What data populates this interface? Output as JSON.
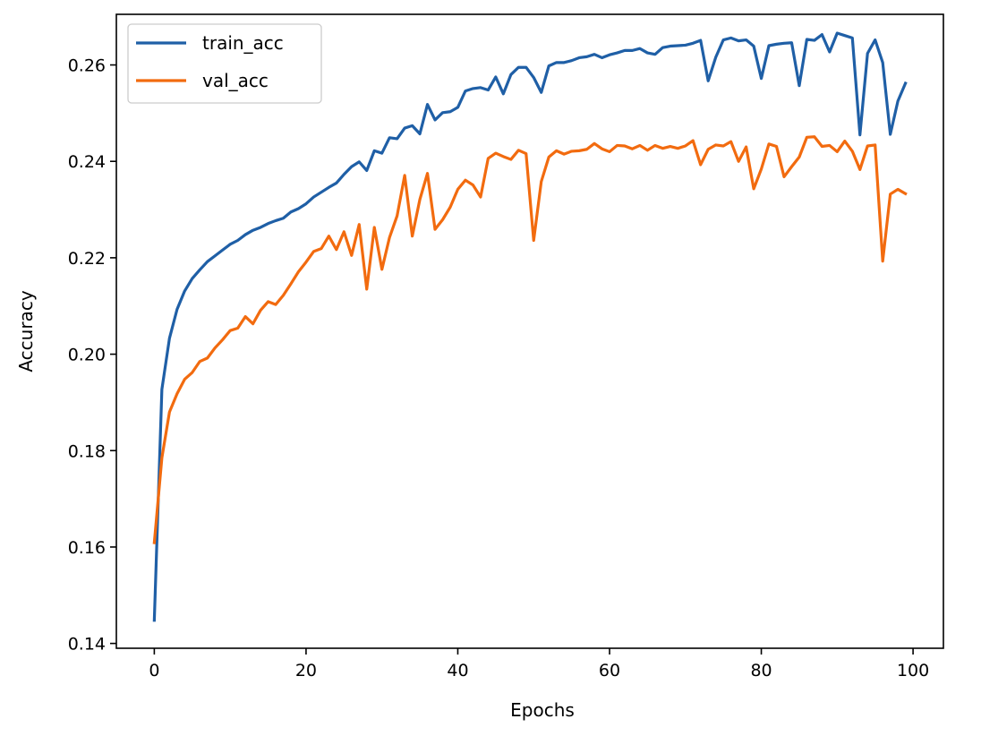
{
  "chart_data": {
    "type": "line",
    "title": "",
    "xlabel": "Epochs",
    "ylabel": "Accuracy",
    "xlim": [
      -5,
      104
    ],
    "ylim": [
      0.139,
      0.2705
    ],
    "xticks": [
      0,
      20,
      40,
      60,
      80,
      100
    ],
    "yticks": [
      0.14,
      0.16,
      0.18,
      0.2,
      0.22,
      0.24,
      0.26
    ],
    "xtick_labels": [
      "0",
      "20",
      "40",
      "60",
      "80",
      "100"
    ],
    "ytick_labels": [
      "0.14",
      "0.16",
      "0.18",
      "0.20",
      "0.22",
      "0.24",
      "0.26"
    ],
    "grid": false,
    "legend": "top-left",
    "x": [
      0,
      1,
      2,
      3,
      4,
      5,
      6,
      7,
      8,
      9,
      10,
      11,
      12,
      13,
      14,
      15,
      16,
      17,
      18,
      19,
      20,
      21,
      22,
      23,
      24,
      25,
      26,
      27,
      28,
      29,
      30,
      31,
      32,
      33,
      34,
      35,
      36,
      37,
      38,
      39,
      40,
      41,
      42,
      43,
      44,
      45,
      46,
      47,
      48,
      49,
      50,
      51,
      52,
      53,
      54,
      55,
      56,
      57,
      58,
      59,
      60,
      61,
      62,
      63,
      64,
      65,
      66,
      67,
      68,
      69,
      70,
      71,
      72,
      73,
      74,
      75,
      76,
      77,
      78,
      79,
      80,
      81,
      82,
      83,
      84,
      85,
      86,
      87,
      88,
      89,
      90,
      91,
      92,
      93,
      94,
      95,
      96,
      97,
      98,
      99
    ],
    "series": [
      {
        "name": "train_acc",
        "color": "#1f5fa6",
        "values": [
          0.1448,
          0.1927,
          0.2033,
          0.2093,
          0.2131,
          0.2157,
          0.2175,
          0.2192,
          0.2204,
          0.2216,
          0.2228,
          0.2236,
          0.2248,
          0.2257,
          0.2263,
          0.2271,
          0.2277,
          0.2282,
          0.2295,
          0.2302,
          0.2312,
          0.2326,
          0.2336,
          0.2346,
          0.2355,
          0.2373,
          0.2389,
          0.2399,
          0.2381,
          0.2422,
          0.2417,
          0.2449,
          0.2447,
          0.2469,
          0.2474,
          0.2457,
          0.2518,
          0.2486,
          0.2501,
          0.2503,
          0.2512,
          0.2546,
          0.2551,
          0.2553,
          0.2548,
          0.2575,
          0.254,
          0.258,
          0.2595,
          0.2595,
          0.2574,
          0.2543,
          0.2598,
          0.2605,
          0.2605,
          0.2609,
          0.2615,
          0.2617,
          0.2622,
          0.2615,
          0.2621,
          0.2625,
          0.263,
          0.263,
          0.2634,
          0.2625,
          0.2622,
          0.2636,
          0.2639,
          0.264,
          0.2641,
          0.2645,
          0.2651,
          0.2567,
          0.2616,
          0.2652,
          0.2656,
          0.265,
          0.2652,
          0.2639,
          0.2572,
          0.264,
          0.2643,
          0.2645,
          0.2646,
          0.2557,
          0.2653,
          0.2651,
          0.2663,
          0.2627,
          0.2666,
          0.2661,
          0.2656,
          0.2455,
          0.2624,
          0.2652,
          0.2605,
          0.2456,
          0.2525,
          0.2562
        ]
      },
      {
        "name": "val_acc",
        "color": "#f26b0f",
        "values": [
          0.1609,
          0.1785,
          0.188,
          0.1918,
          0.1948,
          0.1962,
          0.1985,
          0.1992,
          0.2013,
          0.203,
          0.2049,
          0.2054,
          0.2078,
          0.2063,
          0.2091,
          0.2109,
          0.2103,
          0.2122,
          0.2146,
          0.2171,
          0.2191,
          0.2213,
          0.2219,
          0.2245,
          0.2217,
          0.2254,
          0.2205,
          0.2269,
          0.2135,
          0.2263,
          0.2176,
          0.2242,
          0.2287,
          0.2371,
          0.2245,
          0.2321,
          0.2375,
          0.2259,
          0.2279,
          0.2305,
          0.2342,
          0.2361,
          0.2351,
          0.2326,
          0.2406,
          0.2417,
          0.241,
          0.2404,
          0.2423,
          0.2416,
          0.2236,
          0.2358,
          0.2409,
          0.2422,
          0.2415,
          0.2421,
          0.2422,
          0.2425,
          0.2437,
          0.2426,
          0.242,
          0.2433,
          0.2432,
          0.2426,
          0.2433,
          0.2423,
          0.2433,
          0.2427,
          0.2431,
          0.2427,
          0.2432,
          0.2443,
          0.2393,
          0.2425,
          0.2434,
          0.2432,
          0.2441,
          0.24,
          0.243,
          0.2343,
          0.2384,
          0.2436,
          0.2431,
          0.2368,
          0.2389,
          0.2409,
          0.245,
          0.2451,
          0.2431,
          0.2433,
          0.242,
          0.2442,
          0.2421,
          0.2383,
          0.2432,
          0.2434,
          0.2193,
          0.2332,
          0.2342,
          0.2333
        ]
      }
    ]
  }
}
